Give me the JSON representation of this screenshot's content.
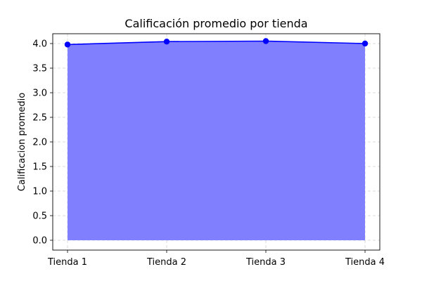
{
  "chart_data": {
    "type": "area",
    "title": "Calificación promedio por tienda",
    "xlabel": "",
    "ylabel": "Calificacion promedio",
    "categories": [
      "Tienda 1",
      "Tienda 2",
      "Tienda 3",
      "Tienda 4"
    ],
    "values": [
      3.98,
      4.04,
      4.05,
      4.0
    ],
    "ylim": [
      -0.2,
      4.2
    ],
    "yticks": [
      "0.0",
      "0.5",
      "1.0",
      "1.5",
      "2.0",
      "2.5",
      "3.0",
      "3.5",
      "4.0"
    ],
    "grid": true,
    "colors": {
      "line": "#0000ff",
      "fill": "#8080ff",
      "grid": "#d0d0d0",
      "axes": "#000000"
    }
  }
}
